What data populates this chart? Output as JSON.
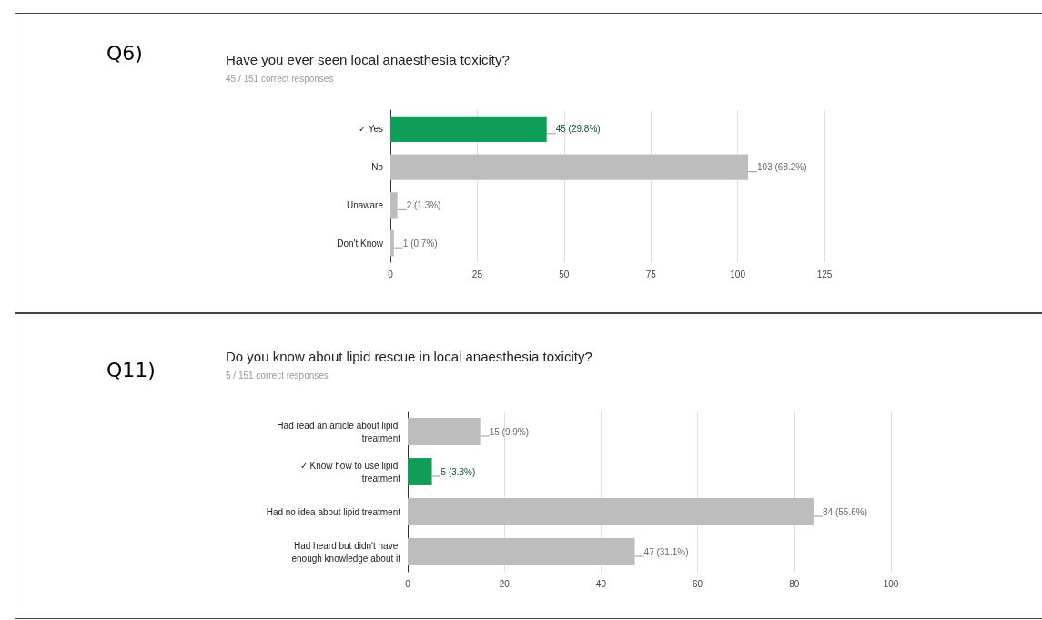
{
  "chart_data": [
    {
      "type": "bar",
      "orientation": "horizontal",
      "title": "Have you ever seen local anaesthesia toxicity?",
      "subtitle": "45 / 151 correct responses",
      "annotations": [
        "Q6)"
      ],
      "categories": [
        "✓ Yes",
        "No",
        "Unaware",
        "Don't Know"
      ],
      "values": [
        45,
        103,
        2,
        1
      ],
      "colors": [
        "#0f9d58",
        "#bdbdbd",
        "#bdbdbd",
        "#bdbdbd"
      ],
      "value_labels": [
        "45 (29.8%)",
        "103 (68.2%)",
        "2 (1.3%)",
        "1 (0.7%)"
      ],
      "xlim": [
        0,
        125
      ],
      "xticks": [
        0,
        25,
        50,
        75,
        100,
        125
      ],
      "grid": "x"
    },
    {
      "type": "bar",
      "orientation": "horizontal",
      "title": "Do you know about lipid rescue in local anaesthesia toxicity?",
      "subtitle": "5 / 151 correct responses",
      "annotations": [
        "Q11)"
      ],
      "categories": [
        "Had read an article about lipid treatment",
        "✓ Know how to use lipid treatment",
        "Had no idea about lipid treatment",
        "Had heard but didn't have enough knowledge about it"
      ],
      "values": [
        15,
        5,
        84,
        47
      ],
      "colors": [
        "#bdbdbd",
        "#0f9d58",
        "#bdbdbd",
        "#bdbdbd"
      ],
      "value_labels": [
        "15 (9.9%)",
        "5 (3.3%)",
        "84 (55.6%)",
        "47 (31.1%)"
      ],
      "xlim": [
        0,
        100
      ],
      "xticks": [
        0,
        20,
        40,
        60,
        80,
        100
      ],
      "grid": "x"
    }
  ]
}
